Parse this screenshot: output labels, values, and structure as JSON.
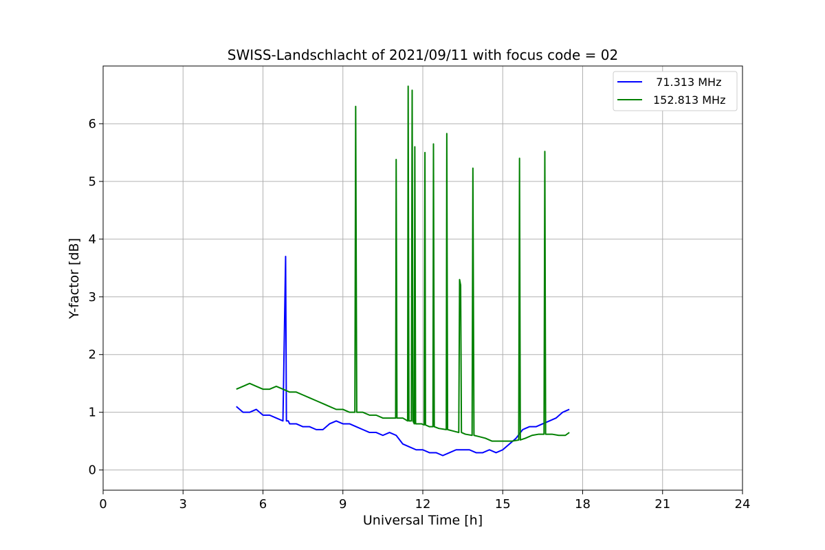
{
  "chart_data": {
    "type": "line",
    "title": "SWISS-Landschlacht of 2021/09/11 with focus code = 02",
    "xlabel": "Universal Time [h]",
    "ylabel": "Y-factor [dB]",
    "xlim": [
      0,
      24
    ],
    "ylim": [
      -0.35,
      7.0
    ],
    "xticks": [
      "0",
      "3",
      "6",
      "9",
      "12",
      "15",
      "18",
      "21",
      "24"
    ],
    "yticks": [
      "0",
      "1",
      "2",
      "3",
      "4",
      "5",
      "6"
    ],
    "grid": true,
    "legend_position": "top-right",
    "series": [
      {
        "name": "  71.313 MHz",
        "color": "#0000ff",
        "x": [
          5.0,
          5.25,
          5.5,
          5.75,
          6.0,
          6.25,
          6.5,
          6.75,
          6.85,
          6.88,
          6.95,
          7.0,
          7.25,
          7.5,
          7.75,
          8.0,
          8.25,
          8.5,
          8.75,
          9.0,
          9.25,
          9.5,
          9.75,
          10.0,
          10.25,
          10.5,
          10.75,
          11.0,
          11.25,
          11.5,
          11.75,
          12.0,
          12.25,
          12.5,
          12.75,
          13.0,
          13.25,
          13.5,
          13.75,
          14.0,
          14.25,
          14.5,
          14.75,
          15.0,
          15.25,
          15.5,
          15.75,
          16.0,
          16.25,
          16.5,
          16.75,
          17.0,
          17.25,
          17.5
        ],
        "y": [
          1.1,
          1.0,
          1.0,
          1.05,
          0.95,
          0.95,
          0.9,
          0.85,
          3.7,
          0.85,
          0.85,
          0.8,
          0.8,
          0.75,
          0.75,
          0.7,
          0.7,
          0.8,
          0.85,
          0.8,
          0.8,
          0.75,
          0.7,
          0.65,
          0.65,
          0.6,
          0.65,
          0.6,
          0.45,
          0.4,
          0.35,
          0.35,
          0.3,
          0.3,
          0.25,
          0.3,
          0.35,
          0.35,
          0.35,
          0.3,
          0.3,
          0.35,
          0.3,
          0.35,
          0.45,
          0.55,
          0.7,
          0.75,
          0.75,
          0.8,
          0.85,
          0.9,
          1.0,
          1.05
        ]
      },
      {
        "name": "152.813 MHz",
        "color": "#008000",
        "x": [
          5.0,
          5.25,
          5.5,
          5.75,
          6.0,
          6.25,
          6.5,
          6.75,
          7.0,
          7.25,
          7.5,
          7.75,
          8.0,
          8.25,
          8.5,
          8.75,
          9.0,
          9.25,
          9.45,
          9.48,
          9.52,
          9.75,
          10.0,
          10.25,
          10.5,
          10.75,
          10.98,
          11.0,
          11.03,
          11.25,
          11.43,
          11.45,
          11.48,
          11.57,
          11.6,
          11.63,
          11.68,
          11.7,
          11.73,
          11.75,
          11.95,
          12.05,
          12.08,
          12.1,
          12.25,
          12.38,
          12.4,
          12.43,
          12.6,
          12.88,
          12.9,
          12.93,
          13.1,
          13.35,
          13.38,
          13.42,
          13.45,
          13.6,
          13.85,
          13.88,
          13.92,
          14.1,
          14.35,
          14.6,
          14.85,
          15.1,
          15.35,
          15.6,
          15.63,
          15.66,
          15.85,
          16.1,
          16.35,
          16.55,
          16.58,
          16.61,
          16.85,
          17.1,
          17.35,
          17.5
        ],
        "y": [
          1.4,
          1.45,
          1.5,
          1.45,
          1.4,
          1.4,
          1.45,
          1.4,
          1.35,
          1.35,
          1.3,
          1.25,
          1.2,
          1.15,
          1.1,
          1.05,
          1.05,
          1.0,
          1.0,
          6.3,
          1.0,
          1.0,
          0.95,
          0.95,
          0.9,
          0.9,
          0.9,
          5.38,
          0.9,
          0.9,
          0.85,
          6.65,
          0.85,
          0.85,
          6.58,
          0.85,
          0.8,
          5.6,
          0.8,
          0.8,
          0.8,
          0.78,
          5.5,
          0.78,
          0.75,
          0.75,
          5.65,
          0.75,
          0.72,
          0.7,
          5.83,
          0.7,
          0.68,
          0.65,
          3.3,
          3.2,
          0.65,
          0.62,
          0.6,
          5.23,
          0.6,
          0.58,
          0.55,
          0.5,
          0.5,
          0.5,
          0.5,
          0.52,
          5.4,
          0.52,
          0.55,
          0.6,
          0.62,
          0.62,
          5.52,
          0.62,
          0.62,
          0.6,
          0.6,
          0.65
        ]
      }
    ]
  }
}
